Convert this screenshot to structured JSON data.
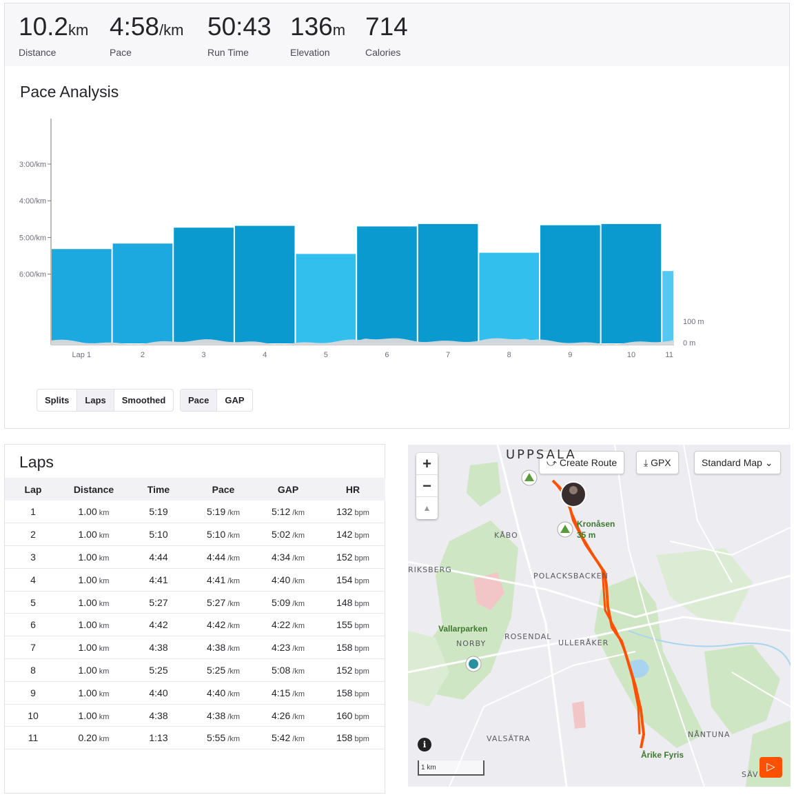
{
  "stats": [
    {
      "value": "10.2",
      "unit": "km",
      "label": "Distance"
    },
    {
      "value": "4:58",
      "unit": "/km",
      "label": "Pace"
    },
    {
      "value": "50:43",
      "unit": "",
      "label": "Run Time"
    },
    {
      "value": "136",
      "unit": "m",
      "label": "Elevation"
    },
    {
      "value": "714",
      "unit": "",
      "label": "Calories"
    }
  ],
  "pace_analysis": {
    "title": "Pace Analysis",
    "split_buttons": [
      "Splits",
      "Laps",
      "Smoothed"
    ],
    "active_split": "Laps",
    "metric_buttons": [
      "Pace",
      "GAP"
    ],
    "active_metric": "Pace"
  },
  "chart_data": {
    "type": "bar",
    "categories": [
      "Lap 1",
      "2",
      "3",
      "4",
      "5",
      "6",
      "7",
      "8",
      "9",
      "10",
      "11"
    ],
    "series": [
      {
        "values": [
          "5:19",
          "5:10",
          "4:44",
          "4:41",
          "5:27",
          "4:42",
          "4:38",
          "5:25",
          "4:40",
          "4:38",
          "5:55"
        ]
      }
    ],
    "y_ticks": [
      "3:00/km",
      "4:00/km",
      "5:00/km",
      "6:00/km"
    ],
    "lap_distance_km": [
      1,
      1,
      1,
      1,
      1,
      1,
      1,
      1,
      1,
      1,
      0.2
    ],
    "elevation_ticks": [
      "100 m",
      "0 m"
    ],
    "colors": {
      "slow": "#32bfee",
      "mid": "#1ba9e0",
      "fast": "#0a9ad0",
      "lightest": "#55c8f2",
      "elevation": "#d9d9dc"
    }
  },
  "laps": {
    "title": "Laps",
    "columns": [
      "Lap",
      "Distance",
      "Time",
      "Pace",
      "GAP",
      "HR"
    ],
    "rows": [
      {
        "lap": "1",
        "distance": "1.00",
        "time": "5:19",
        "pace": "5:19",
        "gap": "5:12",
        "hr": "132"
      },
      {
        "lap": "2",
        "distance": "1.00",
        "time": "5:10",
        "pace": "5:10",
        "gap": "5:02",
        "hr": "142"
      },
      {
        "lap": "3",
        "distance": "1.00",
        "time": "4:44",
        "pace": "4:44",
        "gap": "4:34",
        "hr": "152"
      },
      {
        "lap": "4",
        "distance": "1.00",
        "time": "4:41",
        "pace": "4:41",
        "gap": "4:40",
        "hr": "154"
      },
      {
        "lap": "5",
        "distance": "1.00",
        "time": "5:27",
        "pace": "5:27",
        "gap": "5:09",
        "hr": "148"
      },
      {
        "lap": "6",
        "distance": "1.00",
        "time": "4:42",
        "pace": "4:42",
        "gap": "4:22",
        "hr": "155"
      },
      {
        "lap": "7",
        "distance": "1.00",
        "time": "4:38",
        "pace": "4:38",
        "gap": "4:23",
        "hr": "158"
      },
      {
        "lap": "8",
        "distance": "1.00",
        "time": "5:25",
        "pace": "5:25",
        "gap": "5:08",
        "hr": "152"
      },
      {
        "lap": "9",
        "distance": "1.00",
        "time": "4:40",
        "pace": "4:40",
        "gap": "4:15",
        "hr": "158"
      },
      {
        "lap": "10",
        "distance": "1.00",
        "time": "4:38",
        "pace": "4:38",
        "gap": "4:26",
        "hr": "160"
      },
      {
        "lap": "11",
        "distance": "0.20",
        "time": "1:13",
        "pace": "5:55",
        "gap": "5:42",
        "hr": "158"
      }
    ],
    "units": {
      "distance": "km",
      "pace": "/km",
      "hr": "bpm"
    }
  },
  "map": {
    "create_route": "Create Route",
    "gpx": "GPX",
    "map_style": "Standard Map",
    "scale": "1 km",
    "places": [
      "UPPSALA",
      "KÅBO",
      "RIKSBERG",
      "POLACKSBACKEN",
      "ROSENDAL",
      "NORBY",
      "ULLERÅKER",
      "VALSÄTRA",
      "NÅNTUNA",
      "SÄV"
    ],
    "poi": [
      "Kronåsen",
      "35 m",
      "Vallarparken",
      "Årike Fyris"
    ],
    "route_color": "#fc5200"
  }
}
